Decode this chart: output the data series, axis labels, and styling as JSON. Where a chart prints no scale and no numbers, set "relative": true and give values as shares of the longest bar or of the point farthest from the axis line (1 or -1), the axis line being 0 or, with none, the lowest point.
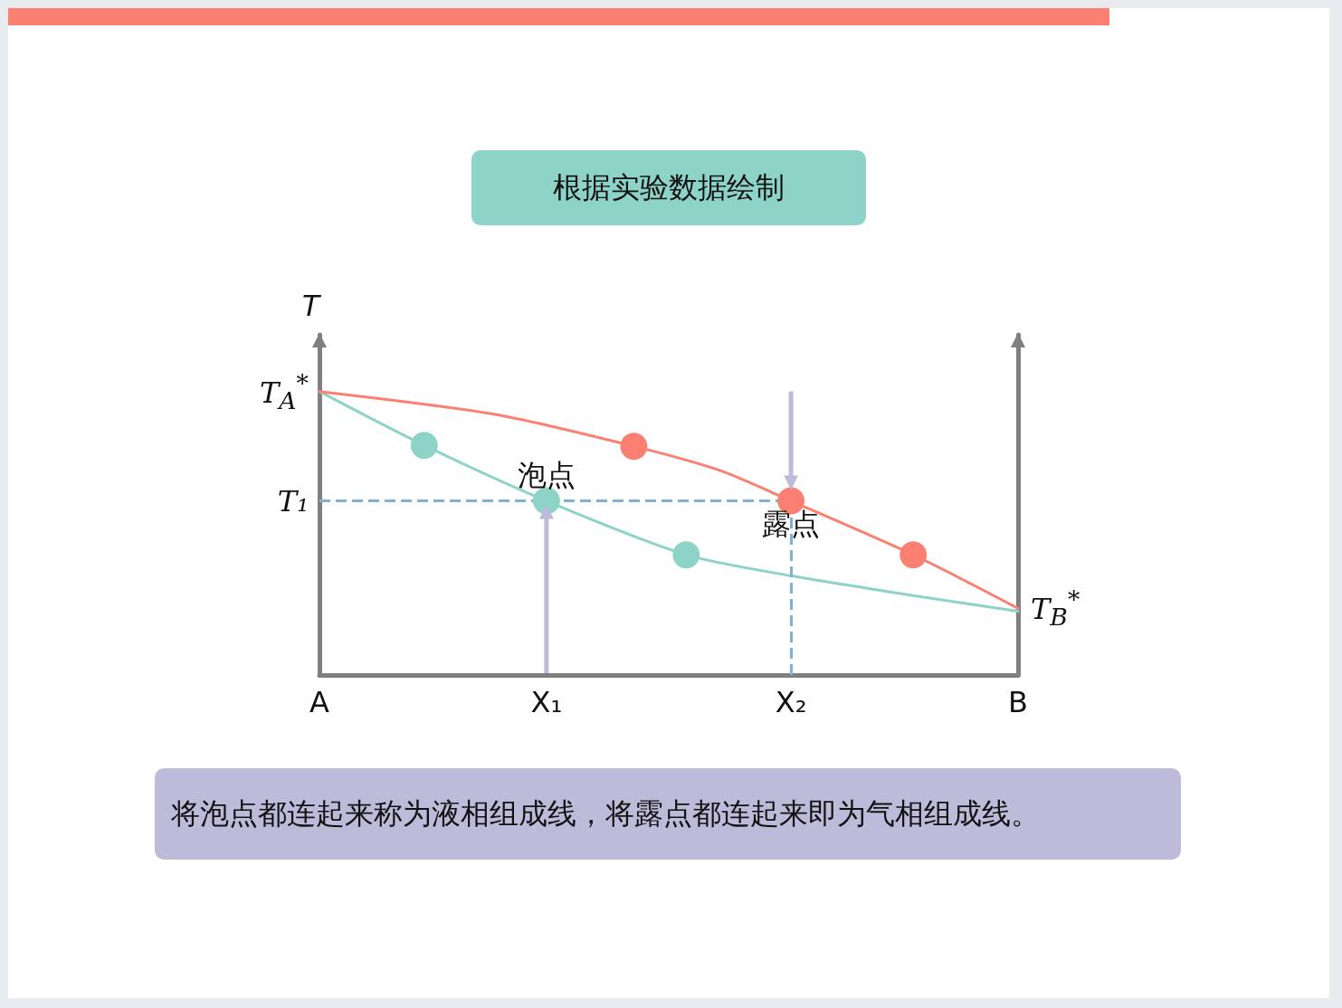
{
  "chart_data": {
    "type": "line",
    "title": "根据实验数据绘制",
    "ylabel": "T",
    "relative": true,
    "categories": [
      "A",
      null,
      null,
      null,
      null,
      null,
      null,
      null,
      null,
      null,
      null,
      null,
      null,
      "X₁",
      null,
      null,
      null,
      null,
      null,
      null,
      null,
      null,
      null,
      null,
      null,
      null,
      null,
      "X₂",
      null,
      null,
      null,
      null,
      null,
      null,
      null,
      null,
      null,
      null,
      null,
      null,
      "B"
    ],
    "tick_labels": "x",
    "grid": false,
    "legend": false,
    "marker": "none",
    "line_style": "solid",
    "series": [
      {
        "color": "#8dd3c7",
        "values": [
          1,
          null,
          null,
          null,
          null,
          null,
          0.81,
          null,
          null,
          null,
          null,
          null,
          null,
          0.614,
          null,
          null,
          null,
          null,
          null,
          null,
          null,
          0.424,
          null,
          null,
          null,
          null,
          null,
          0.35,
          null,
          null,
          null,
          null,
          null,
          null,
          0.28,
          null,
          null,
          null,
          null,
          null,
          0.225
        ]
      },
      {
        "color": "#fb8072",
        "values": [
          1,
          null,
          null,
          null,
          null,
          null,
          null,
          null,
          null,
          null,
          0.92,
          null,
          null,
          null,
          null,
          null,
          null,
          null,
          0.807,
          null,
          null,
          null,
          null,
          0.72,
          null,
          null,
          null,
          0.614,
          null,
          null,
          null,
          null,
          null,
          null,
          0.424,
          null,
          null,
          null,
          null,
          null,
          0.235
        ]
      },
      {
        "type": "scatter",
        "marker": "circle",
        "color": "#8dd3c7",
        "values": [
          null,
          null,
          null,
          null,
          null,
          null,
          0.81,
          null,
          null,
          null,
          null,
          null,
          null,
          0.614,
          null,
          null,
          null,
          null,
          null,
          null,
          null,
          0.424,
          null,
          null,
          null,
          null,
          null,
          null,
          null,
          null,
          null,
          null,
          null,
          null,
          null,
          null,
          null,
          null,
          null,
          null,
          null
        ]
      },
      {
        "type": "scatter",
        "marker": "circle",
        "color": "#fb8072",
        "values": [
          null,
          null,
          null,
          null,
          null,
          null,
          null,
          null,
          null,
          null,
          null,
          null,
          null,
          null,
          null,
          null,
          null,
          null,
          0.807,
          null,
          null,
          null,
          null,
          null,
          null,
          null,
          null,
          0.614,
          null,
          null,
          null,
          null,
          null,
          null,
          0.424,
          null,
          null,
          null,
          null,
          null,
          null
        ]
      }
    ],
    "ref_lines": [
      {
        "axis": "y",
        "value": 0.614,
        "label": "T₁",
        "color": "#7fb0d6",
        "line_style": "dashed"
      },
      {
        "axis": "x",
        "value": "X₂",
        "color": "#7fb0d6",
        "line_style": "dashed"
      }
    ],
    "annotations": [
      {
        "text": "泡点",
        "x": "X₁",
        "y": 0.614
      },
      {
        "text": "露点",
        "x": "X₂",
        "y": 0.614
      },
      {
        "text": "T$_{A}$$^{*}$",
        "x": "A",
        "y": 1
      },
      {
        "text": "T$_{B}$$^{*}$",
        "x": "B",
        "y": 0.235
      },
      "将泡点都连起来称为液相组成线，将露点都连起来即为气相组成线。"
    ]
  }
}
